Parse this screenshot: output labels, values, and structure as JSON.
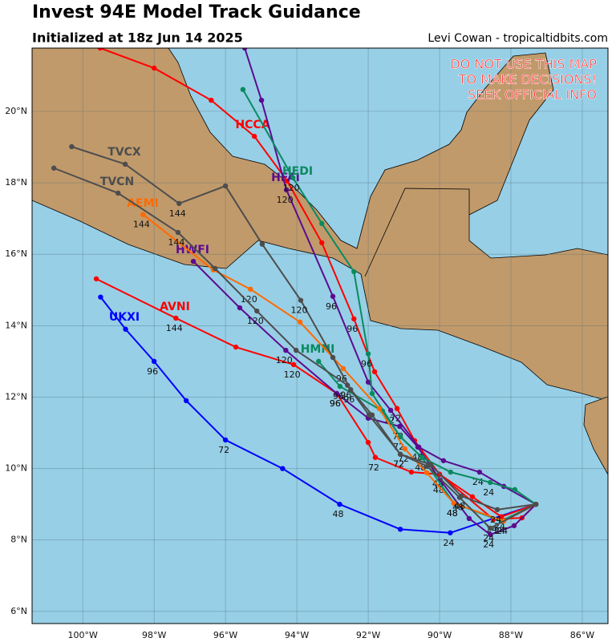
{
  "chart_data": {
    "type": "track-map",
    "title": "Invest 94E Model Track Guidance",
    "subtitle": "Initialized at 18z Jun 14 2025",
    "credit": "Levi Cowan - tropicaltidbits.com",
    "warning": [
      "DO NOT USE THIS MAP",
      "TO MAKE DECISIONS!",
      "SEEK OFFICIAL INFO"
    ],
    "xlim": [
      -101.42,
      -85.28
    ],
    "ylim": [
      5.66,
      21.77
    ],
    "xticks": [
      {
        "value": -100,
        "label": "100°W"
      },
      {
        "value": -98,
        "label": "98°W"
      },
      {
        "value": -96,
        "label": "96°W"
      },
      {
        "value": -94,
        "label": "94°W"
      },
      {
        "value": -92,
        "label": "92°W"
      },
      {
        "value": -90,
        "label": "90°W"
      },
      {
        "value": -88,
        "label": "88°W"
      },
      {
        "value": -86,
        "label": "86°W"
      }
    ],
    "yticks": [
      {
        "value": 6,
        "label": "6°N"
      },
      {
        "value": 8,
        "label": "8°N"
      },
      {
        "value": 10,
        "label": "10°N"
      },
      {
        "value": 12,
        "label": "12°N"
      },
      {
        "value": 14,
        "label": "14°N"
      },
      {
        "value": 16,
        "label": "16°N"
      },
      {
        "value": 18,
        "label": "18°N"
      },
      {
        "value": 20,
        "label": "20°N"
      }
    ],
    "grid": true,
    "series": [
      {
        "name": "UKXI",
        "color": "#0000ff",
        "x": [
          -87.3,
          -89.7,
          -91.1,
          -92.8,
          -94.4,
          -96.0,
          -97.1,
          -98.0,
          -98.8,
          -99.5
        ],
        "values": [
          9.0,
          8.2,
          8.3,
          9.0,
          10.0,
          10.8,
          11.9,
          13.0,
          13.9,
          14.8
        ],
        "hours": [
          null,
          24,
          null,
          48,
          null,
          72,
          null,
          96,
          null,
          null
        ]
      },
      {
        "name": "HCCA",
        "color": "#ff0000",
        "x": [
          -87.3,
          -88.27,
          -89.08,
          -90.0,
          -90.7,
          -91.19,
          -91.82,
          -92.4,
          -93.3,
          -94.27,
          -95.19,
          -96.4,
          -98.0,
          -99.51
        ],
        "values": [
          9.0,
          8.65,
          9.21,
          9.84,
          10.78,
          11.68,
          12.71,
          14.19,
          16.32,
          18.05,
          19.3,
          20.31,
          21.21,
          21.77
        ],
        "hours": [
          null,
          24,
          null,
          48,
          null,
          72,
          null,
          96,
          null,
          null,
          null,
          null,
          null,
          null
        ]
      },
      {
        "name": "AVNI",
        "color": "#ff0000",
        "x": [
          -87.3,
          -87.69,
          -88.49,
          -90.0,
          -90.79,
          -91.8,
          -92.0,
          -92.88,
          -94.09,
          -95.71,
          -97.39,
          -99.62
        ],
        "values": [
          9.0,
          8.62,
          8.58,
          9.84,
          9.9,
          10.31,
          10.73,
          12.1,
          12.91,
          13.4,
          14.21,
          15.31
        ],
        "hours": [
          null,
          null,
          24,
          48,
          null,
          72,
          null,
          96,
          120,
          null,
          144,
          null
        ]
      },
      {
        "name": "HWFI",
        "color": "#5c0b8f",
        "x": [
          -87.3,
          -87.91,
          -88.58,
          -89.17,
          -89.98,
          -90.61,
          -91.12,
          -92.0,
          -92.88,
          -94.31,
          -95.6,
          -96.9
        ],
        "values": [
          9.0,
          8.4,
          8.15,
          8.6,
          9.68,
          10.6,
          11.18,
          11.41,
          12.1,
          13.31,
          14.5,
          15.8
        ],
        "hours": [
          null,
          null,
          24,
          null,
          48,
          null,
          72,
          null,
          96,
          120,
          null,
          null
        ]
      },
      {
        "name": "HFAI",
        "color": "#5c0b8f",
        "x": [
          -87.3,
          -88.2,
          -88.88,
          -89.89,
          -90.58,
          -91.37,
          -92.0,
          -92.99,
          -94.29,
          -94.99,
          -95.46
        ],
        "values": [
          9.0,
          9.5,
          9.9,
          10.22,
          10.6,
          11.63,
          12.42,
          14.82,
          17.8,
          20.31,
          21.77
        ],
        "hours": [
          null,
          null,
          24,
          null,
          48,
          72,
          null,
          96,
          120,
          null,
          null
        ]
      },
      {
        "name": "HEDI",
        "color": "#0a8a60",
        "x": [
          -87.3,
          -87.89,
          -88.58,
          -89.69,
          -90.49,
          -91.1,
          -91.89,
          -92.0,
          -92.4,
          -93.3,
          -94.11,
          -95.51
        ],
        "values": [
          9.0,
          9.41,
          9.61,
          9.9,
          10.31,
          10.89,
          12.1,
          13.21,
          15.51,
          16.86,
          18.14,
          20.61
        ],
        "hours": [
          null,
          null,
          24,
          null,
          48,
          null,
          null,
          96,
          null,
          null,
          120,
          null
        ]
      },
      {
        "name": "HMNI",
        "color": "#0a8a60",
        "x": [
          -87.3,
          -88.27,
          -89.6,
          -90.49,
          -91.1,
          -91.6,
          -92.79,
          -93.39
        ],
        "values": [
          9.0,
          8.53,
          9.03,
          10.31,
          10.89,
          11.61,
          12.3,
          13.0
        ],
        "hours": [
          null,
          24,
          48,
          null,
          72,
          null,
          96,
          null
        ]
      },
      {
        "name": "AEMI",
        "color": "#ff6a00",
        "x": [
          -87.3,
          -88.2,
          -89.6,
          -90.36,
          -90.97,
          -91.69,
          -92.7,
          -93.91,
          -95.3,
          -96.34,
          -98.31
        ],
        "values": [
          9.0,
          8.53,
          9.03,
          9.88,
          10.55,
          11.68,
          12.8,
          14.1,
          15.02,
          15.56,
          17.11
        ],
        "hours": [
          null,
          24,
          48,
          null,
          72,
          null,
          96,
          null,
          120,
          null,
          144
        ]
      },
      {
        "name": "TVCN",
        "color": "#4d4d4d",
        "x": [
          -87.3,
          -88.58,
          -89.44,
          -90.34,
          -91.1,
          -91.98,
          -92.58,
          -94.02,
          -95.12,
          -96.29,
          -97.33,
          -99.01,
          -100.81
        ],
        "values": [
          9.0,
          8.33,
          9.19,
          10.06,
          10.4,
          11.5,
          12.33,
          13.31,
          14.41,
          15.6,
          16.61,
          17.71,
          18.41
        ],
        "hours": [
          null,
          24,
          48,
          null,
          72,
          null,
          96,
          null,
          120,
          null,
          144,
          null,
          null
        ]
      },
      {
        "name": "TVCX",
        "color": "#4d4d4d",
        "x": [
          -87.3,
          -88.38,
          -89.39,
          -90.25,
          -91.1,
          -91.89,
          -92.49,
          -92.99,
          -93.89,
          -94.97,
          -96.0,
          -97.3,
          -98.81,
          -100.31
        ],
        "values": [
          9.0,
          8.85,
          9.23,
          10.11,
          10.4,
          11.5,
          12.21,
          13.11,
          14.71,
          16.28,
          17.91,
          17.42,
          18.52,
          19.01
        ],
        "hours": [
          null,
          24,
          48,
          null,
          72,
          null,
          96,
          null,
          120,
          null,
          null,
          144,
          null,
          null
        ]
      }
    ]
  }
}
